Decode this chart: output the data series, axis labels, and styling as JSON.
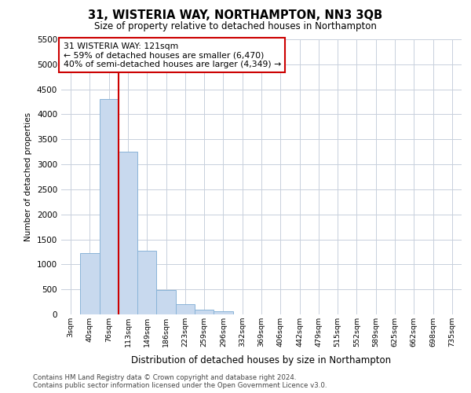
{
  "title": "31, WISTERIA WAY, NORTHAMPTON, NN3 3QB",
  "subtitle": "Size of property relative to detached houses in Northampton",
  "xlabel": "Distribution of detached houses by size in Northampton",
  "ylabel": "Number of detached properties",
  "footnote": "Contains HM Land Registry data © Crown copyright and database right 2024.\nContains public sector information licensed under the Open Government Licence v3.0.",
  "bar_color": "#c8d9ee",
  "bar_edge_color": "#8ab4d8",
  "grid_color": "#c8d0dc",
  "vline_color": "#cc0000",
  "vline_x_index": 3,
  "annotation_box_color": "#cc0000",
  "annotation_text": "31 WISTERIA WAY: 121sqm\n← 59% of detached houses are smaller (6,470)\n40% of semi-detached houses are larger (4,349) →",
  "categories": [
    "3sqm",
    "40sqm",
    "76sqm",
    "113sqm",
    "149sqm",
    "186sqm",
    "223sqm",
    "259sqm",
    "296sqm",
    "332sqm",
    "369sqm",
    "406sqm",
    "442sqm",
    "479sqm",
    "515sqm",
    "552sqm",
    "589sqm",
    "625sqm",
    "662sqm",
    "698sqm",
    "735sqm"
  ],
  "values": [
    0,
    1230,
    4300,
    3250,
    1270,
    480,
    210,
    100,
    70,
    0,
    0,
    0,
    0,
    0,
    0,
    0,
    0,
    0,
    0,
    0,
    0
  ],
  "ylim": [
    0,
    5500
  ],
  "yticks": [
    0,
    500,
    1000,
    1500,
    2000,
    2500,
    3000,
    3500,
    4000,
    4500,
    5000,
    5500
  ],
  "background_color": "#ffffff",
  "fig_width": 6.0,
  "fig_height": 5.0
}
